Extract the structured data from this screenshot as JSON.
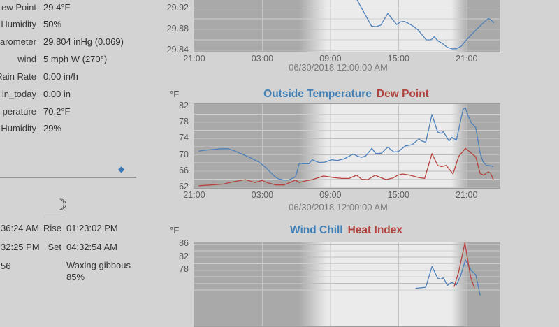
{
  "page": {
    "background": "#d3d3d3"
  },
  "current": {
    "rows": [
      {
        "label": "ew Point",
        "value": "29.4°F"
      },
      {
        "label": "Humidity",
        "value": "50%"
      },
      {
        "label": "arometer",
        "value": "29.804 inHg (0.069)"
      },
      {
        "label": "wind",
        "value": "5 mph W (270°)"
      },
      {
        "label": "Rain Rate",
        "value": "0.00 in/h"
      },
      {
        "label": "in_today",
        "value": "0.00 in"
      },
      {
        "label": "perature",
        "value": "70.2°F"
      },
      {
        "label": "Humidity",
        "value": "29%"
      }
    ]
  },
  "almanac": {
    "diamond_icon": "◆",
    "moon_icon": "☽",
    "sun_values": [
      "36:24 AM",
      "32:25 PM",
      "56"
    ],
    "moon_rows": [
      {
        "label": "Rise",
        "value": "01:23:02 PM"
      },
      {
        "label": "Set",
        "value": "04:32:54 AM"
      }
    ],
    "moon_phase": "Waxing gibbous",
    "moon_phase_pct": "85%"
  },
  "chart_data": [
    {
      "type": "line",
      "name": "barometer",
      "unit": "",
      "title_primary": "",
      "title_secondary": "",
      "date_label": "06/30/2018 12:00:00 AM",
      "x_unit": "hours since 21:00 of previous day",
      "x_ticks": [
        {
          "h": 0,
          "label": "21:00"
        },
        {
          "h": 6,
          "label": "03:00"
        },
        {
          "h": 12,
          "label": "09:00"
        },
        {
          "h": 18,
          "label": "15:00"
        },
        {
          "h": 24,
          "label": "21:00"
        }
      ],
      "x_grid_hours": [
        6,
        12,
        18,
        24
      ],
      "y_ticks": [
        {
          "v": 29.92,
          "label": "29.92"
        },
        {
          "v": 29.88,
          "label": "29.88"
        },
        {
          "v": 29.84,
          "label": "29.84"
        }
      ],
      "y_axis": {
        "vmax": 29.9845,
        "ppu": 755,
        "grid_major": [
          29.92,
          29.88,
          29.84
        ],
        "grid_minor": [
          29.9,
          29.86
        ],
        "visible_range": [
          29.838,
          29.935
        ]
      },
      "series": [
        {
          "name": "barometer-inHg",
          "color": "#4d80ba",
          "points": [
            [
              13.98,
              29.954
            ],
            [
              14.39,
              29.934
            ],
            [
              15.62,
              29.886
            ],
            [
              16.03,
              29.885
            ],
            [
              16.44,
              29.888
            ],
            [
              17.06,
              29.91
            ],
            [
              17.47,
              29.899
            ],
            [
              17.84,
              29.889
            ],
            [
              18.18,
              29.894
            ],
            [
              18.49,
              29.895
            ],
            [
              18.8,
              29.892
            ],
            [
              19.21,
              29.887
            ],
            [
              19.72,
              29.879
            ],
            [
              20.14,
              29.868
            ],
            [
              20.44,
              29.86
            ],
            [
              20.86,
              29.86
            ],
            [
              21.16,
              29.866
            ],
            [
              21.47,
              29.858
            ],
            [
              21.88,
              29.853
            ],
            [
              22.29,
              29.846
            ],
            [
              22.7,
              29.843
            ],
            [
              23.11,
              29.843
            ],
            [
              23.52,
              29.848
            ],
            [
              23.94,
              29.859
            ],
            [
              24.34,
              29.868
            ],
            [
              24.75,
              29.877
            ],
            [
              25.17,
              29.886
            ],
            [
              25.57,
              29.894
            ],
            [
              25.88,
              29.9
            ],
            [
              26.09,
              29.899
            ],
            [
              26.4,
              29.892
            ]
          ]
        }
      ]
    },
    {
      "type": "line",
      "name": "outside-temperature",
      "unit": "°F",
      "title_primary": "Outside Temperature",
      "title_secondary": "Dew Point",
      "date_label": "06/30/2018 12:00:00 AM",
      "x_unit": "hours since 21:00 of previous day",
      "x_ticks": [
        {
          "h": 0,
          "label": "21:00"
        },
        {
          "h": 6,
          "label": "03:00"
        },
        {
          "h": 12,
          "label": "09:00"
        },
        {
          "h": 18,
          "label": "15:00"
        },
        {
          "h": 24,
          "label": "21:00"
        }
      ],
      "x_grid_hours": [
        6,
        12,
        18,
        24
      ],
      "y_ticks": [
        {
          "v": 82,
          "label": "82"
        },
        {
          "v": 78,
          "label": "78"
        },
        {
          "v": 74,
          "label": "74"
        },
        {
          "v": 70,
          "label": "70"
        },
        {
          "v": 66,
          "label": "66"
        },
        {
          "v": 62,
          "label": "62"
        }
      ],
      "y_axis": {
        "vmax": 82.46,
        "ppu": 5.825,
        "grid_major": [
          82,
          78,
          74,
          70,
          66,
          62
        ],
        "grid_minor": [
          80,
          76,
          72,
          68,
          64
        ],
        "visible_range": [
          62,
          82
        ]
      },
      "series": [
        {
          "name": "outside-temperature-F",
          "color": "#4d80ba",
          "points": [
            [
              0.4,
              70.9
            ],
            [
              0.8,
              71.1
            ],
            [
              1.6,
              71.3
            ],
            [
              2.4,
              71.5
            ],
            [
              3.0,
              71.5
            ],
            [
              3.6,
              70.9
            ],
            [
              4.3,
              70.1
            ],
            [
              5.0,
              69.2
            ],
            [
              5.66,
              68.3
            ],
            [
              6.3,
              66.9
            ],
            [
              7.0,
              64.9
            ],
            [
              7.4,
              64.1
            ],
            [
              7.9,
              63.8
            ],
            [
              8.3,
              63.8
            ],
            [
              8.7,
              64.3
            ],
            [
              8.95,
              64.7
            ],
            [
              9.25,
              67.9
            ],
            [
              9.7,
              67.8
            ],
            [
              10.1,
              67.8
            ],
            [
              10.4,
              68.8
            ],
            [
              11.0,
              68.1
            ],
            [
              11.5,
              68.2
            ],
            [
              12.1,
              68.8
            ],
            [
              12.6,
              68.6
            ],
            [
              13.2,
              69.0
            ],
            [
              14.0,
              70.2
            ],
            [
              14.45,
              69.6
            ],
            [
              14.75,
              69.4
            ],
            [
              15.1,
              69.7
            ],
            [
              15.65,
              71.6
            ],
            [
              16.0,
              70.3
            ],
            [
              16.5,
              70.4
            ],
            [
              17.05,
              71.9
            ],
            [
              17.6,
              70.7
            ],
            [
              18.0,
              70.8
            ],
            [
              18.6,
              72.2
            ],
            [
              19.2,
              72.5
            ],
            [
              19.8,
              73.9
            ],
            [
              20.05,
              73.4
            ],
            [
              20.4,
              73.1
            ],
            [
              20.95,
              79.9
            ],
            [
              21.45,
              75.6
            ],
            [
              21.75,
              75.3
            ],
            [
              21.95,
              75.7
            ],
            [
              22.45,
              73.4
            ],
            [
              22.7,
              74.3
            ],
            [
              23.1,
              73.6
            ],
            [
              23.7,
              81.3
            ],
            [
              23.9,
              81.5
            ],
            [
              24.15,
              79.5
            ],
            [
              24.4,
              77.9
            ],
            [
              24.8,
              76.7
            ],
            [
              25.2,
              70.3
            ],
            [
              25.45,
              68.3
            ],
            [
              25.75,
              67.4
            ],
            [
              26.1,
              67.3
            ],
            [
              26.35,
              67.1
            ]
          ]
        },
        {
          "name": "dew-point-F",
          "color": "#b5443f",
          "points": [
            [
              0.4,
              62.4
            ],
            [
              1.5,
              62.6
            ],
            [
              2.5,
              62.8
            ],
            [
              3.7,
              63.5
            ],
            [
              4.5,
              63.9
            ],
            [
              5.35,
              63.2
            ],
            [
              5.95,
              63.7
            ],
            [
              6.5,
              63.1
            ],
            [
              7.2,
              62.6
            ],
            [
              7.9,
              62.6
            ],
            [
              8.6,
              63.4
            ],
            [
              8.95,
              63.8
            ],
            [
              9.25,
              63.2
            ],
            [
              10.0,
              63.7
            ],
            [
              10.4,
              63.9
            ],
            [
              11.4,
              64.8
            ],
            [
              12.3,
              64.4
            ],
            [
              13.0,
              64.2
            ],
            [
              13.66,
              64.2
            ],
            [
              14.3,
              65.0
            ],
            [
              14.75,
              64.0
            ],
            [
              15.3,
              63.9
            ],
            [
              15.95,
              65.0
            ],
            [
              16.35,
              64.5
            ],
            [
              16.9,
              63.9
            ],
            [
              17.5,
              64.3
            ],
            [
              17.95,
              65.0
            ],
            [
              18.35,
              65.3
            ],
            [
              19.0,
              65.0
            ],
            [
              19.8,
              64.4
            ],
            [
              20.3,
              64.2
            ],
            [
              20.95,
              70.3
            ],
            [
              21.45,
              67.4
            ],
            [
              21.8,
              67.1
            ],
            [
              22.2,
              67.4
            ],
            [
              22.8,
              65.3
            ],
            [
              23.3,
              69.6
            ],
            [
              23.9,
              71.6
            ],
            [
              24.3,
              70.7
            ],
            [
              24.8,
              69.5
            ],
            [
              25.2,
              65.4
            ],
            [
              25.5,
              65.0
            ],
            [
              25.9,
              65.8
            ],
            [
              26.1,
              65.5
            ],
            [
              26.35,
              63.9
            ]
          ]
        }
      ]
    },
    {
      "type": "line",
      "name": "wind-chill-heat-index",
      "unit": "°F",
      "title_primary": "Wind Chill",
      "title_secondary": "Heat Index",
      "date_label": "",
      "x_unit": "hours since 21:00 of previous day",
      "x_ticks": [],
      "x_grid_hours": [
        6,
        12,
        18,
        24
      ],
      "y_ticks": [
        {
          "v": 86,
          "label": "86"
        },
        {
          "v": 82,
          "label": "82"
        },
        {
          "v": 78,
          "label": "78"
        }
      ],
      "y_axis": {
        "vmax": 86.53,
        "ppu": 4.675,
        "grid_major": [
          86,
          82,
          78,
          74
        ],
        "grid_minor": [
          84,
          80,
          76,
          72
        ],
        "visible_range": [
          74.8,
          86.5
        ]
      },
      "series": [
        {
          "name": "wind-chill-F",
          "color": "#4d80ba",
          "points": [
            [
              19.5,
              72.5
            ],
            [
              20.4,
              72.8
            ],
            [
              20.95,
              79.2
            ],
            [
              21.45,
              75.6
            ],
            [
              21.75,
              75.3
            ],
            [
              21.95,
              75.7
            ],
            [
              22.3,
              73.4
            ],
            [
              22.7,
              74.3
            ],
            [
              23.1,
              73.5
            ],
            [
              23.45,
              76.1
            ],
            [
              23.9,
              81.2
            ],
            [
              24.4,
              77.9
            ],
            [
              24.8,
              76.7
            ],
            [
              25.2,
              70.3
            ]
          ]
        },
        {
          "name": "heat-index-F",
          "color": "#b5443f",
          "points": [
            [
              22.9,
              73.0
            ],
            [
              23.3,
              77.5
            ],
            [
              23.85,
              86.4
            ],
            [
              24.35,
              76.0
            ],
            [
              24.7,
              72.5
            ]
          ]
        }
      ]
    }
  ]
}
